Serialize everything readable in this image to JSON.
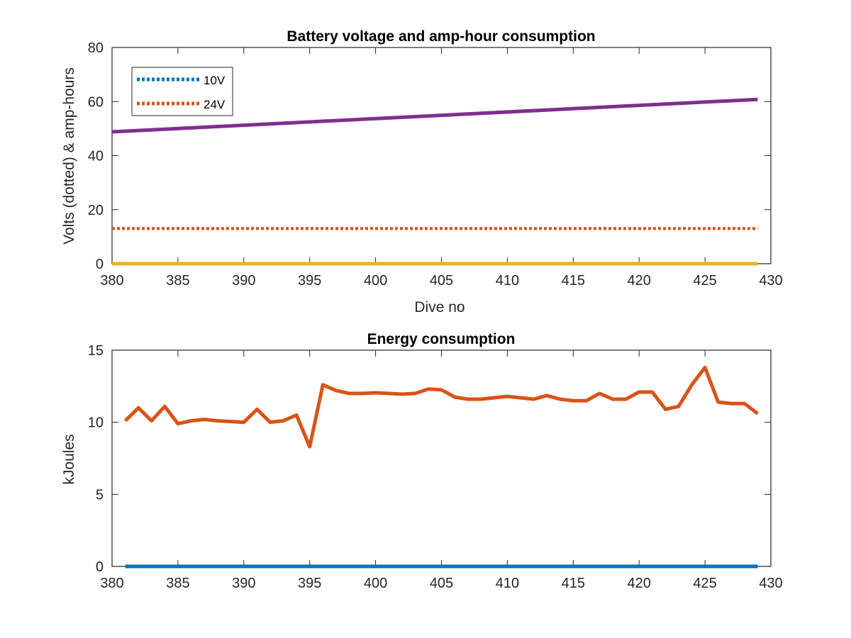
{
  "chart_data": [
    {
      "type": "line",
      "title": "Battery voltage and amp-hour consumption",
      "xlabel": "Dive no",
      "ylabel": "Volts (dotted) & amp-hours",
      "xlim": [
        380,
        430
      ],
      "ylim": [
        0,
        80
      ],
      "xticks": [
        380,
        385,
        390,
        395,
        400,
        405,
        410,
        415,
        420,
        425,
        430
      ],
      "yticks": [
        0,
        20,
        40,
        60,
        80
      ],
      "grid": false,
      "legend_position": "top-left",
      "series": [
        {
          "name": "10V",
          "style": "dotted",
          "color": "#0072BD",
          "x": [
            380,
            429
          ],
          "y": [
            13,
            13
          ]
        },
        {
          "name": "24V",
          "style": "dotted",
          "color": "#D95319",
          "x": [
            380,
            429
          ],
          "y": [
            13,
            13
          ]
        },
        {
          "style": "solid",
          "color": "#EDB120",
          "x": [
            380,
            429
          ],
          "y": [
            0,
            0
          ]
        },
        {
          "style": "solid",
          "color": "#7E2F8E",
          "x": [
            380,
            429
          ],
          "y": [
            48.8,
            60.8
          ]
        }
      ]
    },
    {
      "type": "line",
      "title": "Energy consumption",
      "xlabel": "",
      "ylabel": "kJoules",
      "xlim": [
        380,
        430
      ],
      "ylim": [
        0,
        15
      ],
      "xticks": [
        380,
        385,
        390,
        395,
        400,
        405,
        410,
        415,
        420,
        425,
        430
      ],
      "yticks": [
        0,
        5,
        10,
        15
      ],
      "grid": false,
      "series": [
        {
          "style": "solid",
          "color": "#0072BD",
          "x": [
            381,
            429
          ],
          "y": [
            0,
            0
          ]
        },
        {
          "style": "solid",
          "color": "#D95319",
          "x": [
            381,
            382,
            383,
            384,
            385,
            386,
            387,
            388,
            389,
            390,
            391,
            392,
            393,
            394,
            395,
            396,
            397,
            398,
            399,
            400,
            401,
            402,
            403,
            404,
            405,
            406,
            407,
            408,
            409,
            410,
            411,
            412,
            413,
            414,
            415,
            416,
            417,
            418,
            419,
            420,
            421,
            422,
            423,
            424,
            425,
            426,
            427,
            428,
            429
          ],
          "y": [
            10.1,
            11.0,
            10.1,
            11.1,
            9.9,
            10.1,
            10.2,
            10.1,
            10.05,
            10.0,
            10.9,
            10.0,
            10.1,
            10.5,
            8.3,
            12.6,
            12.2,
            12.0,
            12.0,
            12.05,
            12.0,
            11.95,
            12.0,
            12.3,
            12.25,
            11.75,
            11.6,
            11.6,
            11.7,
            11.8,
            11.7,
            11.6,
            11.85,
            11.6,
            11.5,
            11.5,
            12.0,
            11.6,
            11.6,
            12.1,
            12.1,
            10.9,
            11.1,
            12.6,
            13.8,
            11.4,
            11.3,
            11.3,
            10.6
          ]
        }
      ]
    }
  ]
}
